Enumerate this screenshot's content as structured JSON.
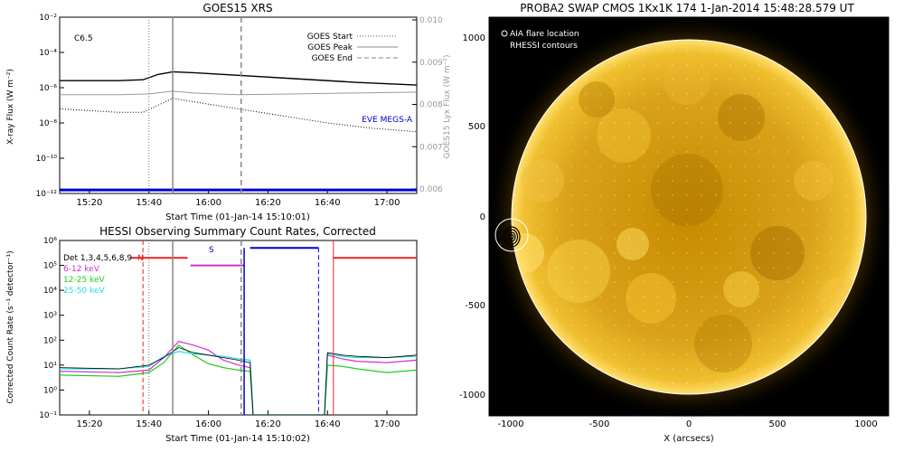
{
  "colors": {
    "goes_long": "#000000",
    "goes_short": "#000000",
    "lyman": "#999999",
    "eve": "#0000cc",
    "black_series": "#000000",
    "magenta": "#cc33cc",
    "green": "#22cc22",
    "cyan": "#22dddd",
    "blue": "#0000cc",
    "red": "#ee2222",
    "gray": "#999999",
    "sun_core": "#d49a00",
    "sun_limb": "#ffd84a"
  },
  "goes": {
    "title": "GOES15 XRS",
    "ylabel": "X-ray Flux (W m⁻²)",
    "y2label": "GOES15 Lyx Flux (W m⁻²)",
    "xlabel": "Start Time (01-Jan-14 15:10:01)",
    "class_label": "C6.5",
    "legend": [
      "GOES Start",
      "GOES Peak",
      "GOES End"
    ],
    "eve_label": "EVE MEGS-A",
    "xticks": [
      "15:20",
      "15:40",
      "16:00",
      "16:20",
      "16:40",
      "17:00"
    ],
    "yticks": [
      "10⁻²",
      "10⁻⁴",
      "10⁻⁶",
      "10⁻⁸",
      "10⁻¹⁰",
      "10⁻¹²"
    ],
    "y2ticks": [
      "0.010",
      "0.009",
      "0.008",
      "0.007",
      "0.006"
    ]
  },
  "hessi": {
    "title": "HESSI Observing Summary Count Rates, Corrected",
    "ylabel": "Corrected Count Rate (s⁻¹ detector⁻¹)",
    "xlabel": "Start Time (01-Jan-14 15:10:02)",
    "legend": [
      "Det 1,3,4,5,6,8,9",
      "6-12 keV",
      "12-25 keV",
      "25-50 keV"
    ],
    "flag_n": "N",
    "flag_s": "S",
    "xticks": [
      "15:20",
      "15:40",
      "16:00",
      "16:20",
      "16:40",
      "17:00"
    ],
    "yticks": [
      "10⁶",
      "10⁵",
      "10⁴",
      "10³",
      "10²",
      "10¹",
      "10⁰",
      "10⁻¹"
    ]
  },
  "sun": {
    "title": "PROBA2 SWAP CMOS 1Kx1K 174   1-Jan-2014 15:48:28.579 UT",
    "legend": [
      "AIA flare location",
      "RHESSI contours"
    ],
    "xlabel": "X (arcsecs)",
    "xticks": [
      "-1000",
      "-500",
      "0",
      "500",
      "1000"
    ],
    "yticks": [
      "1000",
      "500",
      "0",
      "-500",
      "-1000"
    ]
  },
  "chart_data": [
    {
      "type": "line",
      "title": "GOES15 XRS",
      "xlabel": "Start Time (01-Jan-14 15:10:01)",
      "ylabel": "X-ray Flux (W m⁻²)",
      "y2label": "GOES15 Lyx Flux (W m⁻²)",
      "x_unit": "minutes after 15:10",
      "xlim": [
        0,
        120
      ],
      "ylim_log10": [
        -12,
        -2
      ],
      "y2lim": [
        0.006,
        0.01
      ],
      "annotations": {
        "goes_start_min": 30,
        "goes_peak_min": 38,
        "goes_end_min": 61,
        "flare_class": "C6.5"
      },
      "series": [
        {
          "name": "GOES long",
          "x": [
            0,
            20,
            28,
            33,
            38,
            45,
            60,
            80,
            100,
            120
          ],
          "log10_y": [
            -5.6,
            -5.6,
            -5.55,
            -5.25,
            -5.1,
            -5.15,
            -5.3,
            -5.5,
            -5.7,
            -5.85
          ]
        },
        {
          "name": "GOES short",
          "x": [
            0,
            10,
            20,
            28,
            33,
            38,
            45,
            60,
            75,
            90,
            105,
            120
          ],
          "log10_y": [
            -7.2,
            -7.3,
            -7.4,
            -7.4,
            -7.0,
            -6.6,
            -6.8,
            -7.2,
            -7.6,
            -8.0,
            -8.3,
            -8.5
          ]
        },
        {
          "name": "Lyman-alpha",
          "x": [
            0,
            20,
            30,
            38,
            45,
            60,
            80,
            100,
            120
          ],
          "log10_y": [
            -6.4,
            -6.4,
            -6.35,
            -6.2,
            -6.3,
            -6.4,
            -6.35,
            -6.3,
            -6.25
          ]
        },
        {
          "name": "EVE MEGS-A",
          "x": [
            0,
            120
          ],
          "log10_y": [
            -11.8,
            -11.8
          ]
        }
      ]
    },
    {
      "type": "line",
      "title": "HESSI Observing Summary Count Rates, Corrected",
      "xlabel": "Start Time (01-Jan-14 15:10:02)",
      "ylabel": "Corrected Count Rate (s⁻¹ detector⁻¹)",
      "x_unit": "minutes after 15:10",
      "xlim": [
        0,
        120
      ],
      "ylim_log10": [
        -1,
        6
      ],
      "markers": {
        "red_dashed_min": 28,
        "blue_dashed_min": 62,
        "blue_dashed2_min": 87,
        "red_solid_min": 92
      },
      "series": [
        {
          "name": "6-12 keV",
          "x": [
            0,
            20,
            30,
            35,
            40,
            45,
            50,
            55,
            60,
            64,
            65,
            89,
            90,
            95,
            100,
            110,
            120
          ],
          "log10_y": [
            0.75,
            0.7,
            0.8,
            1.3,
            1.95,
            1.8,
            1.6,
            1.2,
            1.0,
            0.9,
            -1,
            -1,
            1.4,
            1.25,
            1.15,
            1.1,
            1.2
          ]
        },
        {
          "name": "12-25 keV",
          "x": [
            0,
            20,
            30,
            35,
            40,
            45,
            50,
            55,
            60,
            64,
            65,
            89,
            90,
            95,
            100,
            110,
            120
          ],
          "log10_y": [
            0.6,
            0.55,
            0.7,
            1.1,
            1.8,
            1.4,
            1.05,
            0.9,
            0.8,
            0.75,
            -1,
            -1,
            1.0,
            0.95,
            0.85,
            0.7,
            0.8
          ]
        },
        {
          "name": "25-50 keV",
          "x": [
            0,
            20,
            30,
            35,
            40,
            45,
            50,
            55,
            60,
            64,
            65,
            89,
            90,
            95,
            100,
            110,
            120
          ],
          "log10_y": [
            0.85,
            0.85,
            0.95,
            1.35,
            1.55,
            1.45,
            1.4,
            1.35,
            1.25,
            1.2,
            -1,
            -1,
            1.45,
            1.35,
            1.3,
            1.3,
            1.35
          ]
        },
        {
          "name": "Det 1,3,4,5,6,8,9",
          "x": [
            0,
            20,
            30,
            35,
            40,
            45,
            50,
            55,
            60,
            64,
            65,
            89,
            90,
            95,
            100,
            110,
            120
          ],
          "log10_y": [
            0.9,
            0.85,
            1.0,
            1.3,
            1.7,
            1.5,
            1.4,
            1.3,
            1.2,
            1.1,
            -1,
            -1,
            1.5,
            1.4,
            1.35,
            1.3,
            1.4
          ]
        },
        {
          "name": "flag N",
          "x": [
            24,
            43
          ],
          "log10_y": [
            5.3,
            5.3
          ]
        },
        {
          "name": "flag magenta",
          "x": [
            44,
            62
          ],
          "log10_y": [
            5.0,
            5.0
          ]
        },
        {
          "name": "flag S",
          "x": [
            64,
            87
          ],
          "log10_y": [
            5.7,
            5.7
          ]
        },
        {
          "name": "flag red",
          "x": [
            92,
            120
          ],
          "log10_y": [
            5.3,
            5.3
          ]
        }
      ]
    }
  ]
}
